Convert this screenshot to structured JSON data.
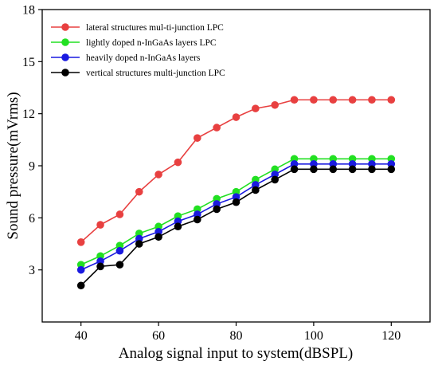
{
  "chart_data": {
    "type": "line",
    "xlabel": "Analog signal input to system(dBSPL)",
    "ylabel": "Sound pressure(mVrms)",
    "xlim": [
      30,
      130
    ],
    "ylim": [
      0,
      18
    ],
    "xticks": [
      40,
      60,
      80,
      100,
      120
    ],
    "yticks": [
      3,
      6,
      9,
      12,
      15,
      18
    ],
    "grid": false,
    "legend_position": "top-left",
    "x": [
      40,
      45,
      50,
      55,
      60,
      65,
      70,
      75,
      80,
      85,
      90,
      95,
      100,
      105,
      110,
      115,
      120
    ],
    "series": [
      {
        "name": "lateral structures mul-ti-junction LPC",
        "color": "#e84040",
        "values": [
          4.6,
          5.6,
          6.2,
          7.5,
          8.5,
          9.2,
          10.6,
          11.2,
          11.8,
          12.3,
          12.5,
          12.8,
          12.8,
          12.8,
          12.8,
          12.8,
          12.8
        ]
      },
      {
        "name": "lightly doped n-InGaAs layers LPC",
        "color": "#22e022",
        "values": [
          3.3,
          3.8,
          4.4,
          5.1,
          5.5,
          6.1,
          6.5,
          7.1,
          7.5,
          8.2,
          8.8,
          9.4,
          9.4,
          9.4,
          9.4,
          9.4,
          9.4
        ]
      },
      {
        "name": "heavily doped n-InGaAs layers",
        "color": "#1a1ae0",
        "values": [
          3.0,
          3.5,
          4.1,
          4.8,
          5.2,
          5.8,
          6.2,
          6.8,
          7.2,
          7.9,
          8.5,
          9.1,
          9.1,
          9.1,
          9.1,
          9.1,
          9.1
        ]
      },
      {
        "name": "vertical structures multi-junction LPC",
        "color": "#000000",
        "values": [
          2.1,
          3.2,
          3.3,
          4.5,
          4.9,
          5.5,
          5.9,
          6.5,
          6.9,
          7.6,
          8.2,
          8.8,
          8.8,
          8.8,
          8.8,
          8.8,
          8.8
        ]
      }
    ]
  }
}
